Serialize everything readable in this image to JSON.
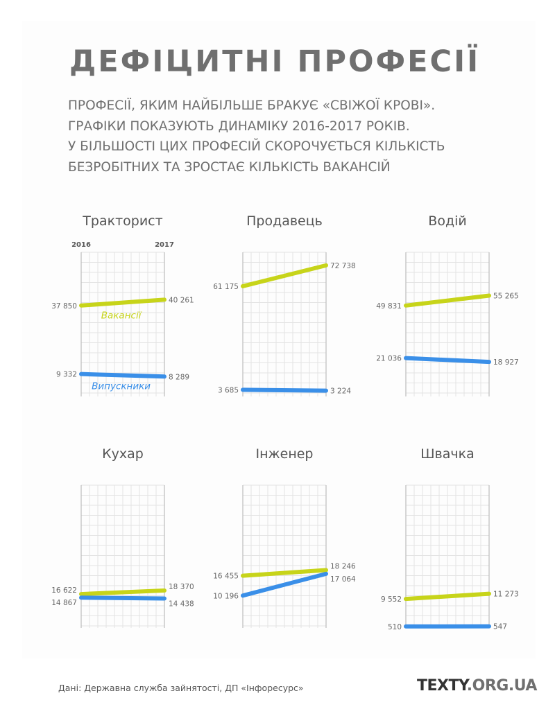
{
  "title": "ДЕФІЦИТНІ ПРОФЕСІЇ",
  "subtitle_lines": [
    "Професії, яким найбільше бракує «свіжої крові».",
    "Графіки показують динаміку 2016-2017 років.",
    "У більшості цих професій скорочується кількість",
    "безробітних та зростає кількість вакансій"
  ],
  "source": "Дані: Державна служба зайнятості, ДП «Інфоресурс»",
  "brand": {
    "part1": "TEXTY",
    "part2": ".ORG.UA"
  },
  "colors": {
    "vacancies": "#c7d41a",
    "graduates": "#3a8fe8"
  },
  "chart_data": [
    {
      "type": "line",
      "title": "Тракторист",
      "x": [
        "2016",
        "2017"
      ],
      "show_year_labels": true,
      "series": [
        {
          "name": "Вакансії",
          "values": [
            37850,
            40261
          ],
          "labels": [
            "37 850",
            "40 261"
          ]
        },
        {
          "name": "Випускники",
          "values": [
            9332,
            8289
          ],
          "labels": [
            "9 332",
            "8 289"
          ]
        }
      ],
      "ylim": [
        0,
        60000
      ],
      "grid": true
    },
    {
      "type": "line",
      "title": "Продавець",
      "x": [
        "2016",
        "2017"
      ],
      "show_year_labels": false,
      "series": [
        {
          "values": [
            61175,
            72738
          ],
          "labels": [
            "61 175",
            "72 738"
          ]
        },
        {
          "values": [
            3685,
            3224
          ],
          "labels": [
            "3 685",
            "3 224"
          ]
        }
      ],
      "ylim": [
        0,
        80000
      ],
      "grid": true
    },
    {
      "type": "line",
      "title": "Водій",
      "x": [
        "2016",
        "2017"
      ],
      "show_year_labels": false,
      "series": [
        {
          "values": [
            49831,
            55265
          ],
          "labels": [
            "49 831",
            "55 265"
          ]
        },
        {
          "values": [
            21036,
            18927
          ],
          "labels": [
            "21 036",
            "18 927"
          ]
        }
      ],
      "ylim": [
        0,
        79000
      ],
      "grid": true
    },
    {
      "type": "line",
      "title": "Кухар",
      "x": [
        "2016",
        "2017"
      ],
      "show_year_labels": false,
      "series": [
        {
          "values": [
            16622,
            18370
          ],
          "labels": [
            "16 622",
            "18 370"
          ]
        },
        {
          "values": [
            14867,
            14438
          ],
          "labels": [
            "14 867",
            "14 438"
          ]
        }
      ],
      "ylim": [
        0,
        70000
      ],
      "grid": true
    },
    {
      "type": "line",
      "title": "Інженер",
      "x": [
        "2016",
        "2017"
      ],
      "show_year_labels": false,
      "series": [
        {
          "values": [
            16455,
            18246
          ],
          "labels": [
            "16 455",
            "18 246"
          ]
        },
        {
          "values": [
            10196,
            17064
          ],
          "labels": [
            "10 196",
            "17 064"
          ]
        }
      ],
      "ylim": [
        0,
        45000
      ],
      "grid": true
    },
    {
      "type": "line",
      "title": "Швачка",
      "x": [
        "2016",
        "2017"
      ],
      "show_year_labels": false,
      "series": [
        {
          "values": [
            9552,
            11273
          ],
          "labels": [
            "9 552",
            "11 273"
          ]
        },
        {
          "values": [
            510,
            547
          ],
          "labels": [
            "510",
            "547"
          ]
        }
      ],
      "ylim": [
        0,
        47000
      ],
      "grid": true
    }
  ]
}
